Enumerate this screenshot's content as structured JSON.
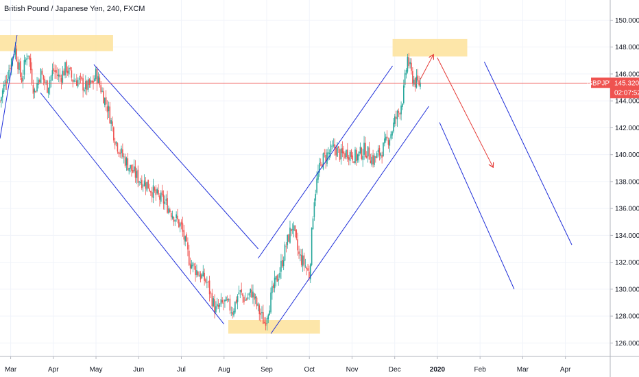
{
  "header": {
    "title": "British Pound / Japanese Yen, 240, FXCM"
  },
  "colors": {
    "up": "#26a69a",
    "down": "#ef5350",
    "channel": "#1f2fd9",
    "zone": "#fde29a",
    "arrow": "#e53935",
    "price_line": "#ef5350",
    "badge": "#ef5350"
  },
  "price_badge": {
    "symbol": "GBPJPY",
    "price": "145.320",
    "timer": "02:07:52",
    "price_value": 145.32
  },
  "chart_data": {
    "type": "candlestick",
    "title": "British Pound / Japanese Yen, 240, FXCM",
    "interval": "240",
    "source": "FXCM",
    "ylim": [
      125.0,
      151.5
    ],
    "y_ticks": [
      "126.000",
      "128.000",
      "130.000",
      "132.000",
      "134.000",
      "136.000",
      "138.000",
      "140.000",
      "142.000",
      "144.000",
      "146.000",
      "148.000",
      "150.000"
    ],
    "y_tick_values": [
      126,
      128,
      130,
      132,
      134,
      136,
      138,
      140,
      142,
      144,
      146,
      148,
      150
    ],
    "x_ticks": [
      {
        "label": "Mar",
        "x": 0.0
      },
      {
        "label": "Apr",
        "x": 1.0
      },
      {
        "label": "May",
        "x": 2.0
      },
      {
        "label": "Jun",
        "x": 3.0
      },
      {
        "label": "Jul",
        "x": 4.0
      },
      {
        "label": "Aug",
        "x": 5.0
      },
      {
        "label": "Sep",
        "x": 6.0
      },
      {
        "label": "Oct",
        "x": 7.0
      },
      {
        "label": "Nov",
        "x": 8.0
      },
      {
        "label": "Dec",
        "x": 9.0
      },
      {
        "label": "2020",
        "x": 10.0,
        "bold": true
      },
      {
        "label": "Feb",
        "x": 11.0
      },
      {
        "label": "Mar",
        "x": 12.0
      },
      {
        "label": "Apr",
        "x": 13.0
      }
    ],
    "xlim": [
      -0.25,
      14.05
    ],
    "series": [
      {
        "x": [
          -0.25,
          0.1,
          0.25,
          0.4,
          0.55,
          0.7,
          0.85,
          1.0,
          1.15,
          1.3,
          1.45,
          1.6,
          1.75,
          1.9,
          2.0,
          2.15,
          2.3,
          2.45,
          2.6,
          2.8,
          3.0,
          3.2,
          3.4,
          3.6,
          3.8,
          4.0,
          4.2,
          4.4,
          4.6,
          4.8,
          5.0,
          5.1,
          5.2,
          5.35,
          5.5,
          5.65,
          5.8,
          5.95,
          6.0,
          6.15,
          6.3,
          6.45,
          6.6,
          6.75,
          6.9,
          7.0,
          7.1,
          7.2,
          7.3,
          7.45,
          7.6,
          7.75,
          7.9,
          8.1,
          8.3,
          8.5,
          8.7,
          8.9,
          9.0,
          9.1,
          9.2,
          9.3,
          9.4,
          9.5,
          9.6
        ],
        "y": [
          144.0,
          148.0,
          145.5,
          147.8,
          144.6,
          146.1,
          145.0,
          146.3,
          145.7,
          146.5,
          145.6,
          145.5,
          145.0,
          145.2,
          146.0,
          144.6,
          143.2,
          141.1,
          140.0,
          139.0,
          138.2,
          137.8,
          137.0,
          136.5,
          135.6,
          134.6,
          132.0,
          131.2,
          130.5,
          128.4,
          129.0,
          128.8,
          128.4,
          129.8,
          129.2,
          129.8,
          128.5,
          127.5,
          128.1,
          130.0,
          131.3,
          133.2,
          134.8,
          132.5,
          131.8,
          131.0,
          136.5,
          138.5,
          139.6,
          140.1,
          140.5,
          139.9,
          140.2,
          139.8,
          140.4,
          139.6,
          140.3,
          141.5,
          142.5,
          143.2,
          144.4,
          147.2,
          145.8,
          145.3,
          145.3
        ]
      }
    ],
    "zones": [
      {
        "x0": -0.25,
        "x1": 2.4,
        "y0": 147.7,
        "y1": 148.9
      },
      {
        "x0": 8.95,
        "x1": 10.7,
        "y0": 147.3,
        "y1": 148.6
      },
      {
        "x0": 5.1,
        "x1": 7.25,
        "y0": 126.7,
        "y1": 127.7
      }
    ],
    "channel_lines": [
      {
        "x1": -0.25,
        "y1": 141.2,
        "x2": 0.15,
        "y2": 148.9
      },
      {
        "x1": 0.7,
        "y1": 144.6,
        "x2": 5.0,
        "y2": 127.4
      },
      {
        "x1": 1.95,
        "y1": 146.7,
        "x2": 5.8,
        "y2": 133.0
      },
      {
        "x1": 5.8,
        "y1": 132.3,
        "x2": 8.95,
        "y2": 146.6
      },
      {
        "x1": 6.1,
        "y1": 126.7,
        "x2": 9.8,
        "y2": 143.6
      },
      {
        "x1": 10.05,
        "y1": 142.4,
        "x2": 11.8,
        "y2": 130.0
      },
      {
        "x1": 11.1,
        "y1": 146.9,
        "x2": 13.15,
        "y2": 133.3
      }
    ],
    "arrows": [
      {
        "x1": 9.6,
        "y1": 145.6,
        "x2": 9.9,
        "y2": 147.4
      },
      {
        "x1": 10.0,
        "y1": 147.2,
        "x2": 11.3,
        "y2": 139.1
      }
    ],
    "grid": true,
    "legend": "none"
  }
}
